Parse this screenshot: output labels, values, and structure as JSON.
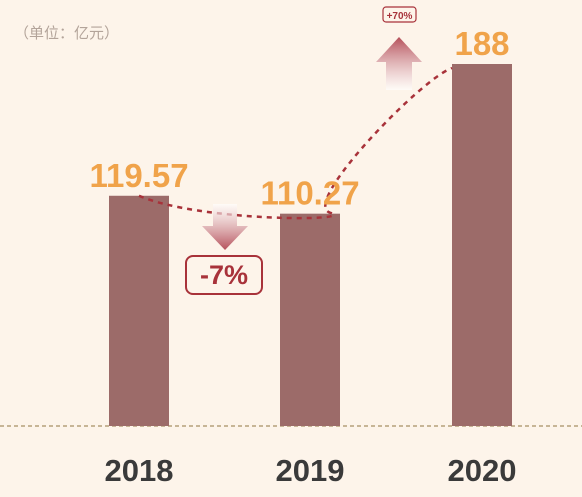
{
  "unit_label": "（单位：亿元）",
  "colors": {
    "background": "#fdf4ea",
    "bar": "#9c6b69",
    "value_label": "#f0a34a",
    "year_label": "#3a3a3a",
    "trend_line": "#a8323a",
    "arrow": "#b5505a",
    "baseline": "#b5a07a"
  },
  "annotations": {
    "decrease_badge": "-7%",
    "increase_badge": "+70%"
  },
  "chart_data": {
    "type": "bar",
    "categories": [
      "2018",
      "2019",
      "2020"
    ],
    "values": [
      119.57,
      110.27,
      188
    ],
    "value_labels": [
      "119.57",
      "110.27",
      "188"
    ],
    "ylim": [
      0,
      200
    ],
    "grid": false,
    "legend": "none",
    "trend_line": true
  }
}
